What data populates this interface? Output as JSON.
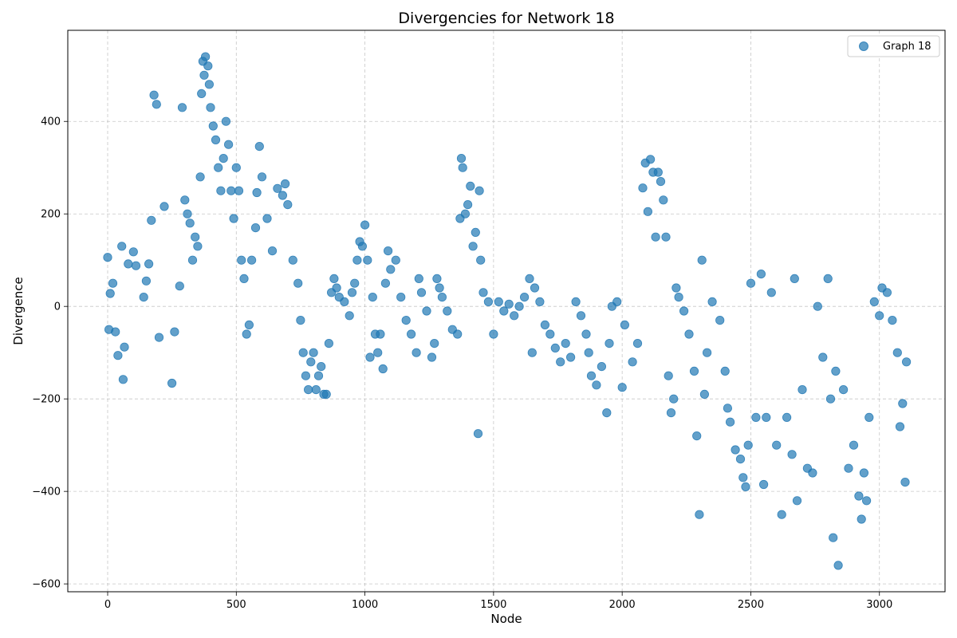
{
  "chart_data": {
    "type": "scatter",
    "title": "Divergencies for Network 18",
    "xlabel": "Node",
    "ylabel": "Divergence",
    "xlim": [
      -155,
      3255
    ],
    "ylim": [
      -617,
      597
    ],
    "xticks": [
      0,
      500,
      1000,
      1500,
      2000,
      2500,
      3000
    ],
    "yticks": [
      -600,
      -400,
      -200,
      0,
      200,
      400
    ],
    "grid": true,
    "legend_position": "top-right",
    "series": [
      {
        "name": "Graph 18",
        "color": "#1f77b4",
        "points": [
          [
            0,
            106
          ],
          [
            5,
            -50
          ],
          [
            10,
            28
          ],
          [
            20,
            50
          ],
          [
            30,
            -55
          ],
          [
            40,
            -106
          ],
          [
            55,
            130
          ],
          [
            60,
            -158
          ],
          [
            65,
            -88
          ],
          [
            80,
            92
          ],
          [
            100,
            118
          ],
          [
            110,
            88
          ],
          [
            140,
            20
          ],
          [
            150,
            55
          ],
          [
            160,
            92
          ],
          [
            170,
            186
          ],
          [
            180,
            457
          ],
          [
            190,
            437
          ],
          [
            200,
            -67
          ],
          [
            220,
            216
          ],
          [
            250,
            -166
          ],
          [
            260,
            -55
          ],
          [
            280,
            44
          ],
          [
            290,
            430
          ],
          [
            300,
            230
          ],
          [
            310,
            200
          ],
          [
            320,
            180
          ],
          [
            330,
            100
          ],
          [
            340,
            150
          ],
          [
            350,
            130
          ],
          [
            360,
            280
          ],
          [
            365,
            460
          ],
          [
            370,
            530
          ],
          [
            375,
            500
          ],
          [
            380,
            540
          ],
          [
            390,
            520
          ],
          [
            395,
            480
          ],
          [
            400,
            430
          ],
          [
            410,
            390
          ],
          [
            420,
            360
          ],
          [
            430,
            300
          ],
          [
            440,
            250
          ],
          [
            450,
            320
          ],
          [
            460,
            400
          ],
          [
            470,
            350
          ],
          [
            480,
            250
          ],
          [
            490,
            190
          ],
          [
            500,
            300
          ],
          [
            510,
            250
          ],
          [
            520,
            100
          ],
          [
            530,
            60
          ],
          [
            540,
            -60
          ],
          [
            550,
            -40
          ],
          [
            560,
            100
          ],
          [
            575,
            170
          ],
          [
            580,
            246
          ],
          [
            590,
            346
          ],
          [
            600,
            280
          ],
          [
            620,
            190
          ],
          [
            640,
            120
          ],
          [
            660,
            255
          ],
          [
            680,
            240
          ],
          [
            690,
            265
          ],
          [
            700,
            220
          ],
          [
            720,
            100
          ],
          [
            740,
            50
          ],
          [
            750,
            -30
          ],
          [
            760,
            -100
          ],
          [
            770,
            -150
          ],
          [
            780,
            -180
          ],
          [
            790,
            -120
          ],
          [
            800,
            -100
          ],
          [
            810,
            -180
          ],
          [
            820,
            -150
          ],
          [
            830,
            -130
          ],
          [
            840,
            -190
          ],
          [
            850,
            -190
          ],
          [
            860,
            -80
          ],
          [
            870,
            30
          ],
          [
            880,
            60
          ],
          [
            890,
            40
          ],
          [
            900,
            20
          ],
          [
            920,
            10
          ],
          [
            940,
            -20
          ],
          [
            950,
            30
          ],
          [
            960,
            50
          ],
          [
            970,
            100
          ],
          [
            980,
            140
          ],
          [
            990,
            130
          ],
          [
            1000,
            176
          ],
          [
            1010,
            100
          ],
          [
            1020,
            -110
          ],
          [
            1030,
            20
          ],
          [
            1040,
            -60
          ],
          [
            1050,
            -100
          ],
          [
            1060,
            -60
          ],
          [
            1070,
            -135
          ],
          [
            1080,
            50
          ],
          [
            1090,
            120
          ],
          [
            1100,
            80
          ],
          [
            1120,
            100
          ],
          [
            1140,
            20
          ],
          [
            1160,
            -30
          ],
          [
            1180,
            -60
          ],
          [
            1200,
            -100
          ],
          [
            1210,
            60
          ],
          [
            1220,
            30
          ],
          [
            1240,
            -10
          ],
          [
            1260,
            -110
          ],
          [
            1270,
            -80
          ],
          [
            1280,
            60
          ],
          [
            1290,
            40
          ],
          [
            1300,
            20
          ],
          [
            1320,
            -10
          ],
          [
            1340,
            -50
          ],
          [
            1360,
            -60
          ],
          [
            1370,
            190
          ],
          [
            1375,
            320
          ],
          [
            1380,
            300
          ],
          [
            1390,
            200
          ],
          [
            1400,
            220
          ],
          [
            1410,
            260
          ],
          [
            1420,
            130
          ],
          [
            1430,
            160
          ],
          [
            1440,
            -275
          ],
          [
            1445,
            250
          ],
          [
            1450,
            100
          ],
          [
            1460,
            30
          ],
          [
            1480,
            10
          ],
          [
            1500,
            -60
          ],
          [
            1520,
            10
          ],
          [
            1540,
            -10
          ],
          [
            1560,
            5
          ],
          [
            1580,
            -20
          ],
          [
            1600,
            0
          ],
          [
            1620,
            20
          ],
          [
            1640,
            60
          ],
          [
            1650,
            -100
          ],
          [
            1660,
            40
          ],
          [
            1680,
            10
          ],
          [
            1700,
            -40
          ],
          [
            1720,
            -60
          ],
          [
            1740,
            -90
          ],
          [
            1760,
            -120
          ],
          [
            1780,
            -80
          ],
          [
            1800,
            -110
          ],
          [
            1820,
            10
          ],
          [
            1840,
            -20
          ],
          [
            1860,
            -60
          ],
          [
            1870,
            -100
          ],
          [
            1880,
            -150
          ],
          [
            1900,
            -170
          ],
          [
            1920,
            -130
          ],
          [
            1940,
            -230
          ],
          [
            1950,
            -80
          ],
          [
            1960,
            0
          ],
          [
            1980,
            10
          ],
          [
            2000,
            -175
          ],
          [
            2010,
            -40
          ],
          [
            2040,
            -120
          ],
          [
            2060,
            -80
          ],
          [
            2080,
            256
          ],
          [
            2090,
            310
          ],
          [
            2100,
            205
          ],
          [
            2110,
            318
          ],
          [
            2120,
            290
          ],
          [
            2130,
            150
          ],
          [
            2140,
            290
          ],
          [
            2150,
            270
          ],
          [
            2160,
            230
          ],
          [
            2170,
            150
          ],
          [
            2180,
            -150
          ],
          [
            2190,
            -230
          ],
          [
            2200,
            -200
          ],
          [
            2210,
            40
          ],
          [
            2220,
            20
          ],
          [
            2240,
            -10
          ],
          [
            2260,
            -60
          ],
          [
            2280,
            -140
          ],
          [
            2290,
            -280
          ],
          [
            2300,
            -450
          ],
          [
            2310,
            100
          ],
          [
            2320,
            -190
          ],
          [
            2330,
            -100
          ],
          [
            2350,
            10
          ],
          [
            2380,
            -30
          ],
          [
            2400,
            -140
          ],
          [
            2410,
            -220
          ],
          [
            2420,
            -250
          ],
          [
            2440,
            -310
          ],
          [
            2460,
            -330
          ],
          [
            2470,
            -370
          ],
          [
            2480,
            -390
          ],
          [
            2490,
            -300
          ],
          [
            2500,
            50
          ],
          [
            2520,
            -240
          ],
          [
            2540,
            70
          ],
          [
            2550,
            -385
          ],
          [
            2560,
            -240
          ],
          [
            2580,
            30
          ],
          [
            2600,
            -300
          ],
          [
            2620,
            -450
          ],
          [
            2640,
            -240
          ],
          [
            2660,
            -320
          ],
          [
            2670,
            60
          ],
          [
            2680,
            -420
          ],
          [
            2700,
            -180
          ],
          [
            2720,
            -350
          ],
          [
            2740,
            -360
          ],
          [
            2760,
            0
          ],
          [
            2780,
            -110
          ],
          [
            2800,
            60
          ],
          [
            2810,
            -200
          ],
          [
            2820,
            -500
          ],
          [
            2830,
            -140
          ],
          [
            2840,
            -560
          ],
          [
            2860,
            -180
          ],
          [
            2880,
            -350
          ],
          [
            2900,
            -300
          ],
          [
            2920,
            -410
          ],
          [
            2930,
            -460
          ],
          [
            2940,
            -360
          ],
          [
            2950,
            -420
          ],
          [
            2960,
            -240
          ],
          [
            2980,
            10
          ],
          [
            3000,
            -20
          ],
          [
            3010,
            40
          ],
          [
            3030,
            30
          ],
          [
            3050,
            -30
          ],
          [
            3070,
            -100
          ],
          [
            3080,
            -260
          ],
          [
            3090,
            -210
          ],
          [
            3100,
            -380
          ],
          [
            3105,
            -120
          ]
        ]
      }
    ]
  }
}
